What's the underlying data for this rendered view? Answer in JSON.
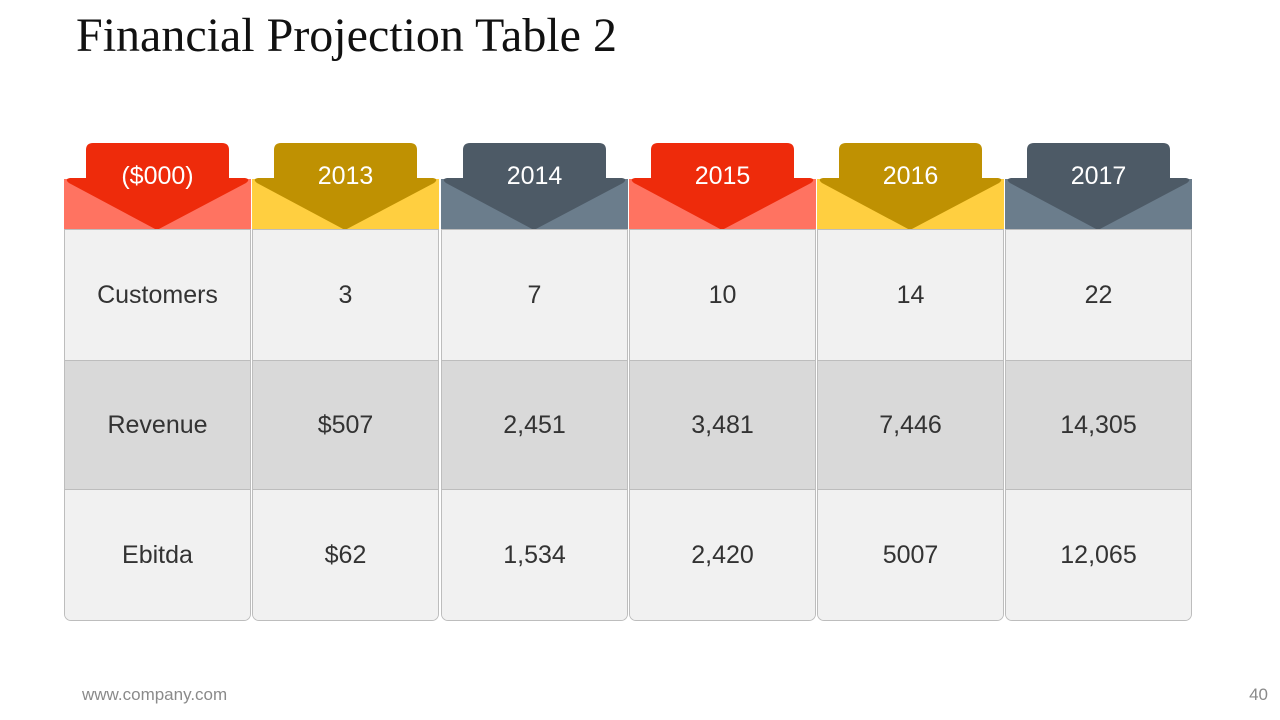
{
  "title": "Financial Projection Table 2",
  "columns": [
    {
      "header": "($000)",
      "cells": [
        "Customers",
        "Revenue",
        "Ebitda"
      ],
      "light": "#ff7361",
      "dark": "#ee2b0b"
    },
    {
      "header": "2013",
      "cells": [
        "3",
        "$507",
        "$62"
      ],
      "light": "#ffcf40",
      "dark": "#bf9102"
    },
    {
      "header": "2014",
      "cells": [
        "7",
        "2,451",
        "1,534"
      ],
      "light": "#6b7d8c",
      "dark": "#4d5a66"
    },
    {
      "header": "2015",
      "cells": [
        "10",
        "3,481",
        "2,420"
      ],
      "light": "#ff7361",
      "dark": "#ee2b0b"
    },
    {
      "header": "2016",
      "cells": [
        "14",
        "7,446",
        "5007"
      ],
      "light": "#ffcf40",
      "dark": "#bf9102"
    },
    {
      "header": "2017",
      "cells": [
        "22",
        "14,305",
        "12,065"
      ],
      "light": "#6b7d8c",
      "dark": "#4d5a66"
    }
  ],
  "footer": {
    "url": "www.company.com",
    "page_number": "40"
  }
}
